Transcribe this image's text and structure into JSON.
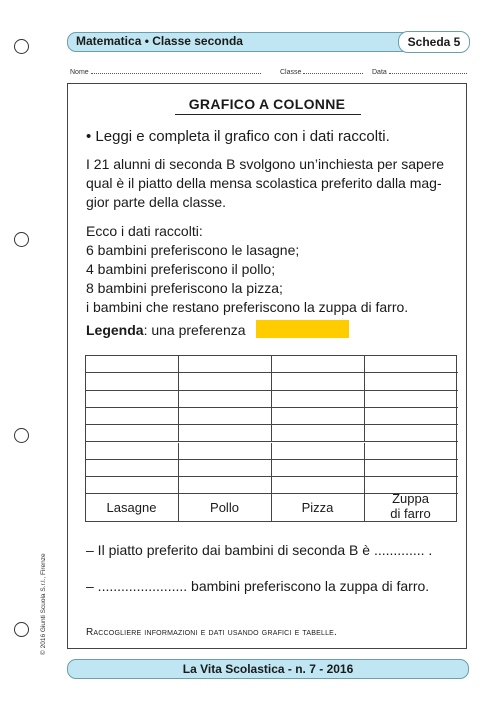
{
  "header": {
    "subject": "Matematica • Classe seconda",
    "sheet": "Scheda 5"
  },
  "student_fields": {
    "name_label": "Nome",
    "class_label": "Classe",
    "date_label": "Data"
  },
  "exercise": {
    "title": "GRAFICO A COLONNE",
    "instruction": "• Leggi e completa il grafico con i dati raccolti.",
    "intro_lines": [
      "I 21 alunni di seconda B svolgono un’inchiesta per sapere",
      "qual è il piatto della mensa scolastica preferito dalla mag-",
      "gior parte della classe."
    ],
    "data_heading": "Ecco i dati raccolti:",
    "data_lines": [
      "6 bambini preferiscono le lasagne;",
      "4 bambini preferiscono il pollo;",
      "8 bambini preferiscono la pizza;",
      "i bambini che restano preferiscono la zuppa di farro."
    ],
    "legend_label": "Legenda",
    "legend_text": ": una preferenza",
    "legend_color": "#ffcc00"
  },
  "chart_grid": {
    "categories": [
      "Lasagne",
      "Pollo",
      "Pizza"
    ],
    "last_category_line1": "Zuppa",
    "last_category_line2": "di farro"
  },
  "questions": {
    "q1": "– Il piatto preferito dai bambini di seconda B è ............. .",
    "q2": "– .......................  bambini preferiscono la zuppa di farro."
  },
  "footer": {
    "note": "Raccogliere informazioni e dati usando grafici e tabelle.",
    "band": "La Vita Scolastica - n. 7 - 2016",
    "copyright": "© 2016 Giunti Scuola S.r.l., Firenze"
  }
}
